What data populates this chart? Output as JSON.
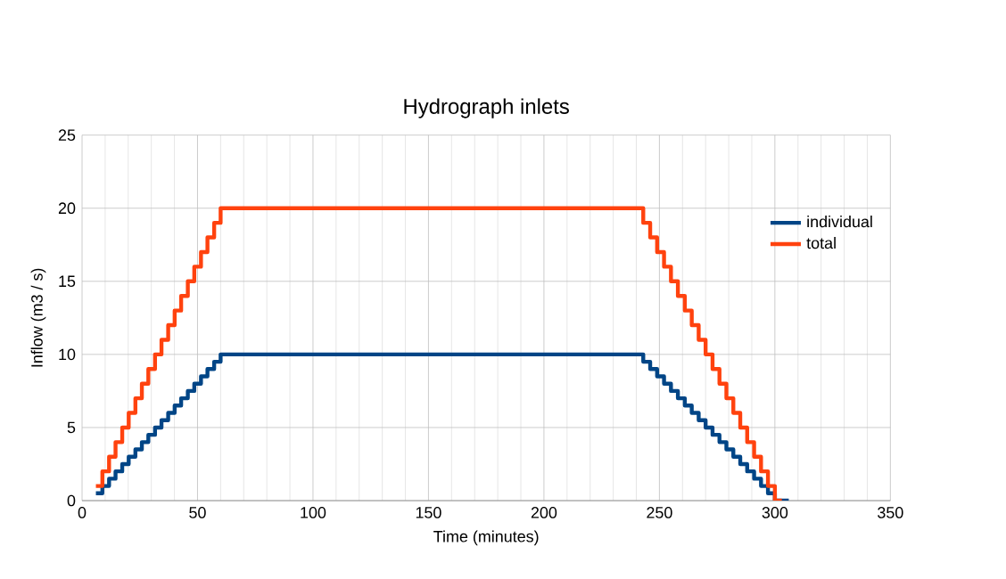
{
  "chart_data": {
    "type": "step",
    "title": "Hydrograph inlets",
    "xlabel": "Time (minutes)",
    "ylabel": "Inflow (m3 / s)",
    "xlim": [
      0,
      350
    ],
    "xticks": [
      0,
      50,
      100,
      150,
      200,
      250,
      300,
      350
    ],
    "ylim": [
      0,
      25
    ],
    "yticks": [
      0,
      5,
      10,
      15,
      20,
      25
    ],
    "grid": true,
    "legend": "top right",
    "marker": "none",
    "line_style": "solid",
    "series": [
      {
        "name": "individual",
        "color": "#004586",
        "x": [
          6,
          8.8,
          11.7,
          14.5,
          17.4,
          20.2,
          23.1,
          25.9,
          28.7,
          31.6,
          34.4,
          37.3,
          40.1,
          42.9,
          45.8,
          48.6,
          51.5,
          54.3,
          57.2,
          60,
          240,
          243,
          246,
          249,
          252,
          255,
          258,
          261,
          264,
          267,
          270,
          273,
          276,
          279,
          282,
          285,
          288,
          291,
          294,
          297,
          300,
          306
        ],
        "values": [
          0.5,
          1,
          1.5,
          2,
          2.5,
          3,
          3.5,
          4,
          4.5,
          5,
          5.5,
          6,
          6.5,
          7,
          7.5,
          8,
          8.5,
          9,
          9.5,
          10,
          10,
          9.5,
          9,
          8.5,
          8,
          7.5,
          7,
          6.5,
          6,
          5.5,
          5,
          4.5,
          4,
          3.5,
          3,
          2.5,
          2,
          1.5,
          1,
          0.5,
          0,
          0
        ]
      },
      {
        "name": "total",
        "color": "#ff420e",
        "x": [
          6,
          8.8,
          11.7,
          14.5,
          17.4,
          20.2,
          23.1,
          25.9,
          28.7,
          31.6,
          34.4,
          37.3,
          40.1,
          42.9,
          45.8,
          48.6,
          51.5,
          54.3,
          57.2,
          60,
          240,
          243,
          246,
          249,
          252,
          255,
          258,
          261,
          264,
          267,
          270,
          273,
          276,
          279,
          282,
          285,
          288,
          291,
          294,
          297,
          300,
          303
        ],
        "values": [
          1,
          2,
          3,
          4,
          5,
          6,
          7,
          8,
          9,
          10,
          11,
          12,
          13,
          14,
          15,
          16,
          17,
          18,
          19,
          20,
          20,
          19,
          18,
          17,
          16,
          15,
          14,
          13,
          12,
          11,
          10,
          9,
          8,
          7,
          6,
          5,
          4,
          3,
          2,
          1,
          0,
          0
        ]
      }
    ]
  }
}
